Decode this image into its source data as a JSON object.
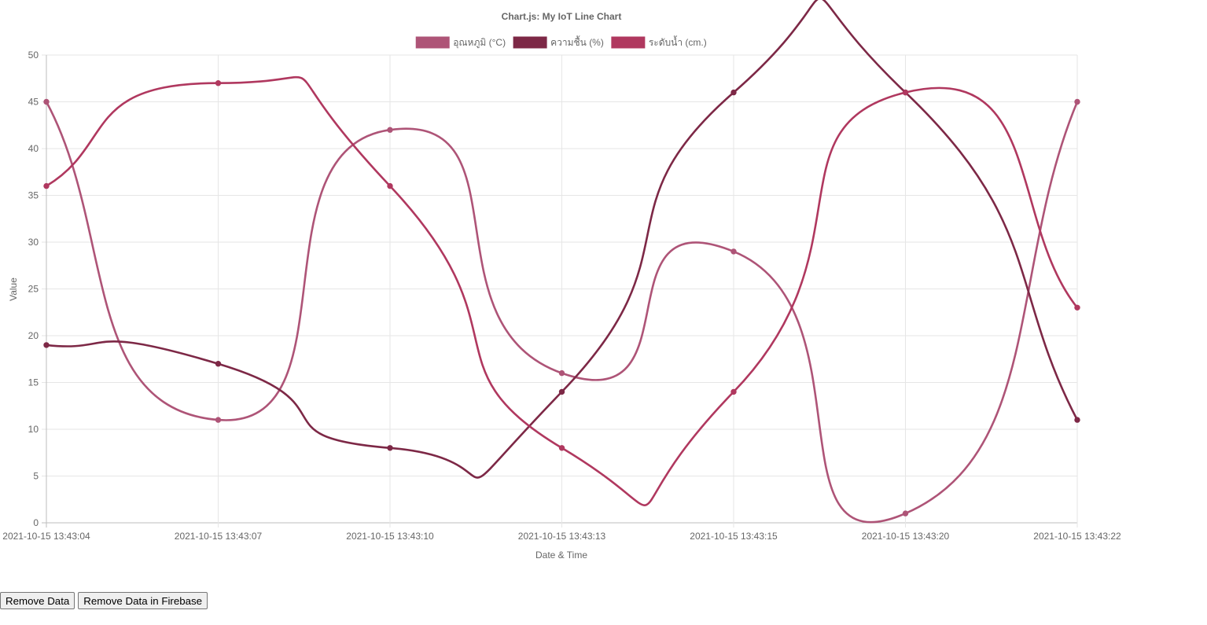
{
  "chart_data": {
    "type": "line",
    "title": "Chart.js: My IoT Line Chart",
    "xlabel": "Date & Time",
    "ylabel": "Value",
    "ylim": [
      0,
      50
    ],
    "yticks": [
      0,
      5,
      10,
      15,
      20,
      25,
      30,
      35,
      40,
      45,
      50
    ],
    "grid": true,
    "legend_position": "top",
    "categories": [
      "2021-10-15 13:43:04",
      "2021-10-15 13:43:07",
      "2021-10-15 13:43:10",
      "2021-10-15 13:43:13",
      "2021-10-15 13:43:15",
      "2021-10-15 13:43:20",
      "2021-10-15 13:43:22"
    ],
    "series": [
      {
        "name": "อุณหภูมิ (°C)",
        "color": "#ae5477",
        "values": [
          45,
          11,
          42,
          16,
          29,
          1,
          45
        ]
      },
      {
        "name": "ความชื้น (%)",
        "color": "#7d2846",
        "values": [
          19,
          17,
          8,
          14,
          46,
          46,
          11
        ]
      },
      {
        "name": "ระดับน้ำ (cm.)",
        "color": "#b0385f",
        "values": [
          36,
          47,
          36,
          8,
          14,
          46,
          23
        ]
      }
    ]
  },
  "buttons": {
    "remove_data": "Remove Data",
    "remove_data_firebase": "Remove Data in Firebase"
  }
}
